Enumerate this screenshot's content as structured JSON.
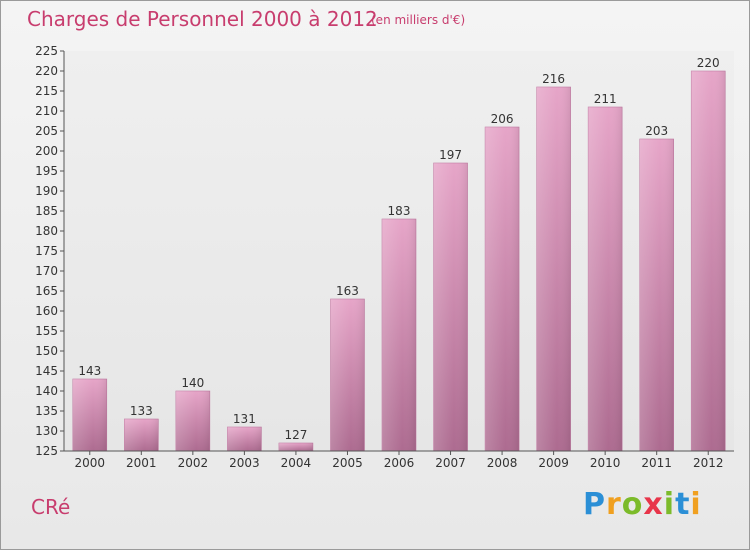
{
  "header": {
    "title": "Charges de Personnel 2000 à 2012",
    "subtitle": "(en milliers d'€)"
  },
  "commune": "CRé",
  "logo": {
    "letters": [
      {
        "char": "P",
        "color": "#2b8fd6"
      },
      {
        "char": "r",
        "color": "#f0a020"
      },
      {
        "char": "o",
        "color": "#7cbb2a"
      },
      {
        "char": "x",
        "color": "#e8354a"
      },
      {
        "char": "i",
        "color": "#7cbb2a"
      },
      {
        "char": "t",
        "color": "#2b8fd6"
      },
      {
        "char": "i",
        "color": "#f0a020"
      }
    ]
  },
  "chart_data": {
    "type": "bar",
    "title": "Charges de Personnel 2000 à 2012",
    "subtitle": "(en milliers d'€)",
    "categories": [
      "2000",
      "2001",
      "2002",
      "2003",
      "2004",
      "2005",
      "2006",
      "2007",
      "2008",
      "2009",
      "2010",
      "2011",
      "2012"
    ],
    "values": [
      143,
      133,
      140,
      131,
      127,
      163,
      183,
      197,
      206,
      216,
      211,
      203,
      220
    ],
    "ylim": [
      125,
      225
    ],
    "ytick_step": 5,
    "grid": false,
    "bar_color": "#d98ab5"
  }
}
